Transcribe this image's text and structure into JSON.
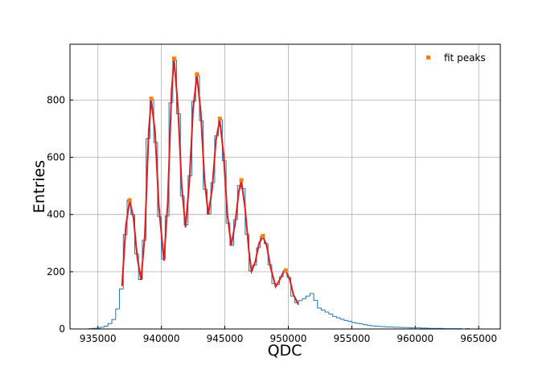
{
  "chart_data": {
    "type": "histogram",
    "xlabel": "QDC",
    "ylabel": "Entries",
    "xlim": [
      932800,
      966700
    ],
    "ylim": [
      0,
      995
    ],
    "xticks": [
      935000,
      940000,
      945000,
      950000,
      955000,
      960000,
      965000
    ],
    "yticks": [
      0,
      200,
      400,
      600,
      800
    ],
    "grid": true,
    "legend": "upper right",
    "series": [
      {
        "type": "histogram",
        "color": "#1f77b4",
        "bins": [
          934000,
          934300,
          934600,
          934900,
          935200,
          935500,
          935800,
          936100,
          936400,
          936700,
          937000,
          937300,
          937600,
          937900,
          938200,
          938500,
          938800,
          939100,
          939400,
          939700,
          940000,
          940300,
          940600,
          940900,
          941200,
          941500,
          941800,
          942100,
          942400,
          942700,
          943000,
          943300,
          943600,
          943900,
          944200,
          944500,
          944800,
          945100,
          945400,
          945700,
          946000,
          946300,
          946600,
          946900,
          947200,
          947500,
          947800,
          948100,
          948400,
          948700,
          949000,
          949300,
          949600,
          949900,
          950200,
          950500,
          950800,
          951100,
          951400,
          951700,
          952000,
          952300,
          952600,
          952900,
          953200,
          953500,
          953800,
          954100,
          954400,
          954700,
          955000,
          955300,
          955600,
          955900,
          956200,
          956500,
          956800,
          957100,
          957400,
          957700,
          958000,
          958300,
          958600,
          958900,
          959200,
          959500,
          959800,
          960100,
          960400,
          960700,
          961000,
          961300,
          961600,
          961900,
          962200,
          962500,
          962800,
          963100,
          963400,
          963700,
          964000,
          964300,
          964600,
          964900
        ],
        "counts": [
          0,
          1,
          2,
          3,
          6,
          10,
          19,
          33,
          70,
          140,
          330,
          450,
          400,
          262,
          173,
          310,
          665,
          802,
          652,
          393,
          245,
          395,
          790,
          940,
          752,
          465,
          364,
          535,
          795,
          886,
          728,
          488,
          402,
          511,
          675,
          732,
          588,
          370,
          292,
          382,
          501,
          491,
          331,
          203,
          223,
          284,
          324,
          299,
          224,
          159,
          155,
          182,
          204,
          180,
          115,
          92,
          99,
          106,
          115,
          124,
          100,
          73,
          66,
          59,
          52,
          44,
          39,
          34,
          30,
          27,
          23,
          20,
          18,
          15,
          13,
          11,
          10,
          9,
          8,
          7,
          7,
          6,
          6,
          5,
          5,
          4,
          4,
          4,
          3,
          3,
          2,
          2,
          2,
          2,
          1,
          1,
          1,
          1,
          1,
          0,
          1,
          0,
          0
        ]
      },
      {
        "type": "line",
        "color": "#e41a1c",
        "x": [
          936900,
          937200,
          937500,
          937800,
          938100,
          938400,
          938700,
          939000,
          939200,
          939500,
          939800,
          940200,
          940500,
          940800,
          941000,
          941300,
          941600,
          941900,
          942200,
          942500,
          942800,
          943100,
          943400,
          943700,
          944000,
          944300,
          944600,
          944900,
          945200,
          945500,
          945800,
          946100,
          946300,
          946600,
          946900,
          947100,
          947400,
          947700,
          948000,
          948300,
          948600,
          949000,
          949300,
          949600,
          949800,
          950100,
          950400,
          950800
        ],
        "values": [
          150,
          360,
          448,
          390,
          250,
          172,
          330,
          690,
          800,
          690,
          430,
          238,
          440,
          830,
          942,
          780,
          500,
          355,
          510,
          770,
          885,
          760,
          520,
          400,
          490,
          660,
          730,
          610,
          400,
          292,
          365,
          480,
          518,
          420,
          270,
          202,
          235,
          300,
          323,
          290,
          215,
          148,
          170,
          198,
          203,
          175,
          120,
          85
        ]
      },
      {
        "type": "scatter",
        "name": "fit peaks",
        "color": "#ff7f0e",
        "x": [
          937500,
          939200,
          941000,
          942800,
          944600,
          946300,
          948000,
          949800
        ],
        "values": [
          450,
          805,
          945,
          890,
          735,
          520,
          325,
          205
        ]
      }
    ]
  }
}
